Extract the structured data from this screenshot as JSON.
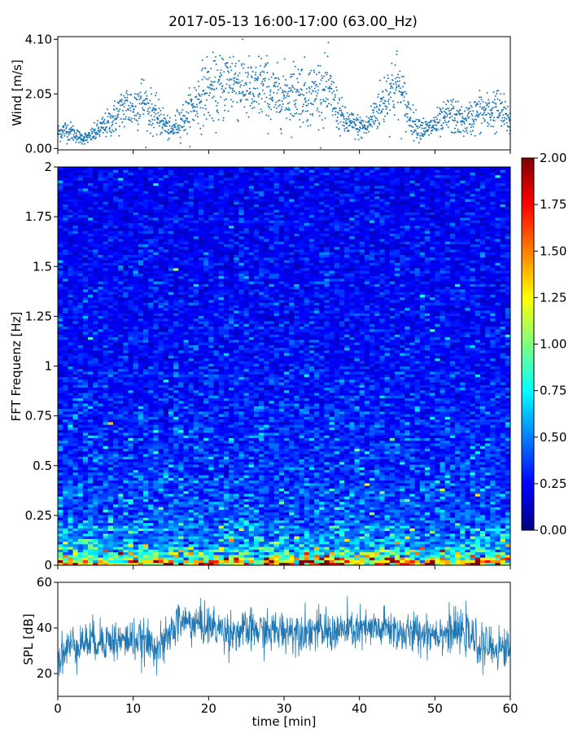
{
  "title": "2017-05-13 16:00-17:00 (63.00_Hz)",
  "chart_data": [
    {
      "id": "wind",
      "type": "scatter",
      "ylabel": "Wind [m/s]",
      "xlim": [
        0,
        60
      ],
      "ylim": [
        -0.05,
        4.2
      ],
      "yticks": [
        0.0,
        2.05,
        4.1
      ],
      "ytick_labels": [
        "0.00",
        "2.05",
        "4.10"
      ],
      "color": "#1f77b4",
      "x": [
        0,
        1,
        2,
        3,
        4,
        5,
        6,
        7,
        8,
        9,
        10,
        11,
        12,
        13,
        14,
        15,
        16,
        17,
        18,
        19,
        20,
        21,
        22,
        23,
        24,
        25,
        26,
        27,
        28,
        29,
        30,
        31,
        32,
        33,
        34,
        35,
        36,
        37,
        38,
        39,
        40,
        41,
        42,
        43,
        44,
        45,
        46,
        47,
        48,
        49,
        50,
        51,
        52,
        53,
        54,
        55,
        56,
        57,
        58,
        59,
        60
      ],
      "values": [
        0.6,
        0.7,
        0.6,
        0.4,
        0.4,
        0.6,
        0.8,
        1.0,
        1.3,
        1.6,
        1.5,
        1.9,
        1.5,
        1.2,
        1.0,
        0.6,
        1.0,
        1.2,
        1.6,
        2.0,
        2.3,
        2.1,
        2.4,
        2.6,
        2.5,
        2.3,
        2.0,
        2.4,
        2.1,
        1.9,
        2.0,
        2.1,
        2.2,
        2.0,
        2.1,
        2.2,
        2.1,
        1.5,
        1.0,
        0.9,
        0.8,
        0.8,
        1.3,
        1.7,
        2.2,
        2.4,
        1.7,
        1.0,
        0.8,
        0.7,
        0.9,
        1.0,
        1.3,
        1.1,
        1.0,
        1.2,
        1.4,
        1.3,
        1.5,
        1.3,
        1.0
      ]
    },
    {
      "id": "spectrogram",
      "type": "heatmap",
      "ylabel": "FFT Frequenz [Hz]",
      "xlim": [
        0,
        60
      ],
      "ylim": [
        0,
        2
      ],
      "yticks": [
        0,
        0.25,
        0.5,
        0.75,
        1,
        1.25,
        1.5,
        1.75,
        2
      ],
      "ytick_labels": [
        "0",
        "0.25",
        "0.5",
        "0.75",
        "1",
        "1.25",
        "1.5",
        "1.75",
        "2"
      ],
      "colormap": "jet",
      "color_range": [
        0,
        2
      ],
      "mean_level_by_frequency": {
        "frequency": [
          0,
          0.05,
          0.1,
          0.25,
          0.5,
          0.75,
          1.0,
          1.5,
          2.0
        ],
        "level": [
          1.5,
          0.85,
          0.55,
          0.4,
          0.33,
          0.3,
          0.26,
          0.24,
          0.22
        ]
      },
      "colorbar": {
        "ticks": [
          0.0,
          0.25,
          0.5,
          0.75,
          1.0,
          1.25,
          1.5,
          1.75,
          2.0
        ],
        "tick_labels": [
          "0.00",
          "0.25",
          "0.50",
          "0.75",
          "1.00",
          "1.25",
          "1.50",
          "1.75",
          "2.00"
        ]
      }
    },
    {
      "id": "spl",
      "type": "line",
      "ylabel": "SPL [dB]",
      "xlabel": "time [min]",
      "xlim": [
        0,
        60
      ],
      "ylim": [
        10,
        60
      ],
      "yticks": [
        20,
        40,
        60
      ],
      "ytick_labels": [
        "20",
        "40",
        "60"
      ],
      "xticks": [
        0,
        10,
        20,
        30,
        40,
        50,
        60
      ],
      "xtick_labels": [
        "0",
        "10",
        "20",
        "30",
        "40",
        "50",
        "60"
      ],
      "color": "#1f77b4",
      "x": [
        0,
        2,
        4,
        6,
        8,
        10,
        12,
        14,
        15,
        16,
        18,
        20,
        22,
        24,
        26,
        28,
        30,
        32,
        34,
        36,
        38,
        40,
        42,
        44,
        46,
        48,
        50,
        52,
        54,
        55,
        56,
        58,
        60
      ],
      "values": [
        27,
        33,
        34,
        35,
        34,
        35,
        33,
        32,
        38,
        43,
        42,
        41,
        39,
        38,
        39,
        38,
        39,
        39,
        39,
        38,
        39,
        39,
        39,
        40,
        37,
        38,
        38,
        38,
        38,
        35,
        32,
        31,
        31
      ]
    }
  ]
}
